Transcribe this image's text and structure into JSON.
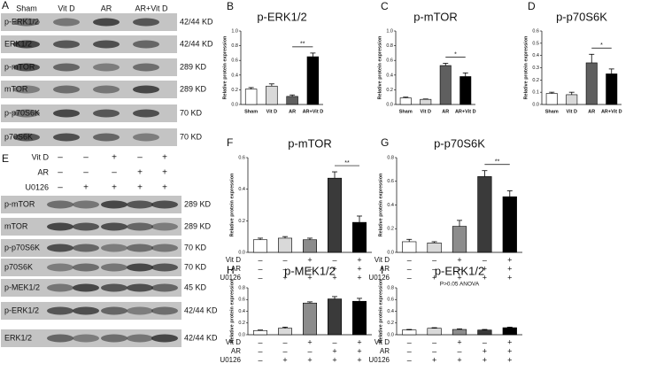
{
  "blots_a": {
    "panel": "A",
    "groups": [
      "Sham",
      "Vit D",
      "AR",
      "AR+Vit D"
    ],
    "rows": [
      {
        "protein": "p-ERK1/2",
        "size": "42/44 KD"
      },
      {
        "protein": "ERK1/2",
        "size": "42/44 KD"
      },
      {
        "protein": "p-mTOR",
        "size": "289 KD"
      },
      {
        "protein": "mTOR",
        "size": "289 KD"
      },
      {
        "protein": "p-p70S6K",
        "size": "70 KD"
      },
      {
        "protein": "p70S6K",
        "size": "70 KD"
      }
    ]
  },
  "blots_e": {
    "panel": "E",
    "conditions": [
      {
        "name": "Vit D",
        "signs": [
          "–",
          "–",
          "+",
          "–",
          "+"
        ]
      },
      {
        "name": "AR",
        "signs": [
          "–",
          "–",
          "–",
          "+",
          "+"
        ]
      },
      {
        "name": "U0126",
        "signs": [
          "–",
          "+",
          "+",
          "+",
          "+"
        ]
      }
    ],
    "rows": [
      {
        "protein": "p-mTOR",
        "size": "289 KD"
      },
      {
        "protein": "mTOR",
        "size": "289 KD"
      },
      {
        "protein": "p-p70S6K",
        "size": "70 KD"
      },
      {
        "protein": "p70S6K",
        "size": "70 KD"
      },
      {
        "protein": "p-MEK1/2",
        "size": "45 KD"
      },
      {
        "protein": "p-ERK1/2",
        "size": "42/44 KD"
      },
      {
        "protein": "ERK1/2",
        "size": "42/44 KD"
      }
    ]
  },
  "chart_data": [
    {
      "type": "bar",
      "panel": "B",
      "title": "p-ERK1/2",
      "y_label": "Relative protein expression",
      "categories": [
        "Sham",
        "Vit D",
        "AR",
        "AR+Vit D"
      ],
      "values": [
        0.21,
        0.25,
        0.11,
        0.65
      ],
      "errors": [
        0.02,
        0.03,
        0.02,
        0.05
      ],
      "colors": [
        "#ffffff",
        "#d9d9d9",
        "#5f5f5f",
        "#000000"
      ],
      "significance": "**",
      "ylim": [
        0,
        1
      ],
      "yticks": [
        {
          "value": 0,
          "label": "0.0"
        },
        0.2,
        0.4,
        0.6,
        0.8,
        {
          "value": 1,
          "label": "1.0"
        }
      ]
    },
    {
      "type": "bar",
      "panel": "C",
      "title": "p-mTOR",
      "y_label": "Relative protein expression",
      "categories": [
        "Sham",
        "Vit D",
        "AR",
        "AR+Vit D"
      ],
      "values": [
        0.09,
        0.07,
        0.53,
        0.38
      ],
      "errors": [
        0.01,
        0.005,
        0.03,
        0.05
      ],
      "colors": [
        "#ffffff",
        "#d9d9d9",
        "#5f5f5f",
        "#000000"
      ],
      "significance": "*",
      "ylim": [
        0,
        1
      ],
      "yticks": [
        {
          "value": 0,
          "label": "0.0"
        },
        0.2,
        0.4,
        0.6,
        0.8,
        {
          "value": 1,
          "label": "1.0"
        }
      ]
    },
    {
      "type": "bar",
      "panel": "D",
      "title": "p-p70S6K",
      "y_label": "Relative protein expression",
      "categories": [
        "Sham",
        "Vit D",
        "AR",
        "AR+Vit D"
      ],
      "values": [
        0.09,
        0.08,
        0.34,
        0.25
      ],
      "errors": [
        0.01,
        0.02,
        0.07,
        0.04
      ],
      "colors": [
        "#ffffff",
        "#d9d9d9",
        "#5f5f5f",
        "#000000"
      ],
      "significance": "*",
      "ylim": [
        0,
        0.6
      ],
      "yticks": [
        {
          "value": 0,
          "label": "0.0"
        },
        0.1,
        0.2,
        0.3,
        0.4,
        0.5,
        0.6
      ]
    },
    {
      "type": "bar",
      "panel": "F",
      "title": "p-mTOR",
      "y_label": "Relative protein expression",
      "conditions": [
        {
          "name": "Vit D",
          "signs": [
            "–",
            "–",
            "+",
            "–",
            "+"
          ]
        },
        {
          "name": "AR",
          "signs": [
            "–",
            "–",
            "–",
            "+",
            "+"
          ]
        },
        {
          "name": "U0126",
          "signs": [
            "–",
            "+",
            "+",
            "+",
            "+"
          ]
        }
      ],
      "values": [
        0.08,
        0.09,
        0.08,
        0.47,
        0.19
      ],
      "errors": [
        0.01,
        0.01,
        0.01,
        0.04,
        0.04
      ],
      "colors": [
        "#ffffff",
        "#d9d9d9",
        "#8c8c8c",
        "#3a3a3a",
        "#000000"
      ],
      "significance": "**",
      "ylim": [
        0,
        0.6
      ],
      "yticks": [
        {
          "value": 0,
          "label": "0.0"
        },
        0.2,
        0.4,
        0.6
      ]
    },
    {
      "type": "bar",
      "panel": "G",
      "title": "p-p70S6K",
      "y_label": "Relative protein expression",
      "conditions": [
        {
          "name": "Vit D",
          "signs": [
            "–",
            "–",
            "+",
            "–",
            "+"
          ]
        },
        {
          "name": "AR",
          "signs": [
            "–",
            "–",
            "–",
            "+",
            "+"
          ]
        },
        {
          "name": "U0126",
          "signs": [
            "–",
            "+",
            "+",
            "+",
            "+"
          ]
        }
      ],
      "values": [
        0.09,
        0.08,
        0.22,
        0.64,
        0.47
      ],
      "errors": [
        0.02,
        0.01,
        0.05,
        0.05,
        0.05
      ],
      "colors": [
        "#ffffff",
        "#d9d9d9",
        "#8c8c8c",
        "#3a3a3a",
        "#000000"
      ],
      "significance": "**",
      "ylim": [
        0,
        0.8
      ],
      "yticks": [
        {
          "value": 0,
          "label": "0.0"
        },
        0.2,
        0.4,
        0.6,
        0.8
      ]
    },
    {
      "type": "bar",
      "panel": "H",
      "title": "p-MEK1/2",
      "y_label": "Relative protein expression",
      "conditions": [
        {
          "name": "Vit D",
          "signs": [
            "–",
            "–",
            "+",
            "–",
            "+"
          ]
        },
        {
          "name": "AR",
          "signs": [
            "–",
            "–",
            "–",
            "+",
            "+"
          ]
        },
        {
          "name": "U0126",
          "signs": [
            "–",
            "+",
            "+",
            "+",
            "+"
          ]
        }
      ],
      "values": [
        0.07,
        0.11,
        0.54,
        0.61,
        0.57
      ],
      "errors": [
        0.01,
        0.02,
        0.02,
        0.04,
        0.05
      ],
      "colors": [
        "#ffffff",
        "#d9d9d9",
        "#8c8c8c",
        "#3a3a3a",
        "#000000"
      ],
      "ylim": [
        0,
        0.8
      ],
      "yticks": [
        {
          "value": 0,
          "label": "0.0"
        },
        0.2,
        0.4,
        0.6,
        0.8
      ]
    },
    {
      "type": "bar",
      "panel": "I",
      "title": "p-ERK1/2",
      "annotation": "P>0.05 ANOVA",
      "y_label": "Relative protein expression",
      "conditions": [
        {
          "name": "Vit D",
          "signs": [
            "–",
            "–",
            "+",
            "–",
            "+"
          ]
        },
        {
          "name": "AR",
          "signs": [
            "–",
            "–",
            "–",
            "+",
            "+"
          ]
        },
        {
          "name": "U0126",
          "signs": [
            "–",
            "+",
            "+",
            "+",
            "+"
          ]
        }
      ],
      "values": [
        0.08,
        0.11,
        0.09,
        0.08,
        0.12
      ],
      "errors": [
        0.01,
        0.01,
        0.01,
        0.01,
        0.01
      ],
      "colors": [
        "#ffffff",
        "#d9d9d9",
        "#8c8c8c",
        "#3a3a3a",
        "#000000"
      ],
      "ylim": [
        0,
        0.8
      ],
      "yticks": [
        {
          "value": 0,
          "label": "0.0"
        },
        0.2,
        0.4,
        0.6,
        0.8
      ]
    }
  ]
}
